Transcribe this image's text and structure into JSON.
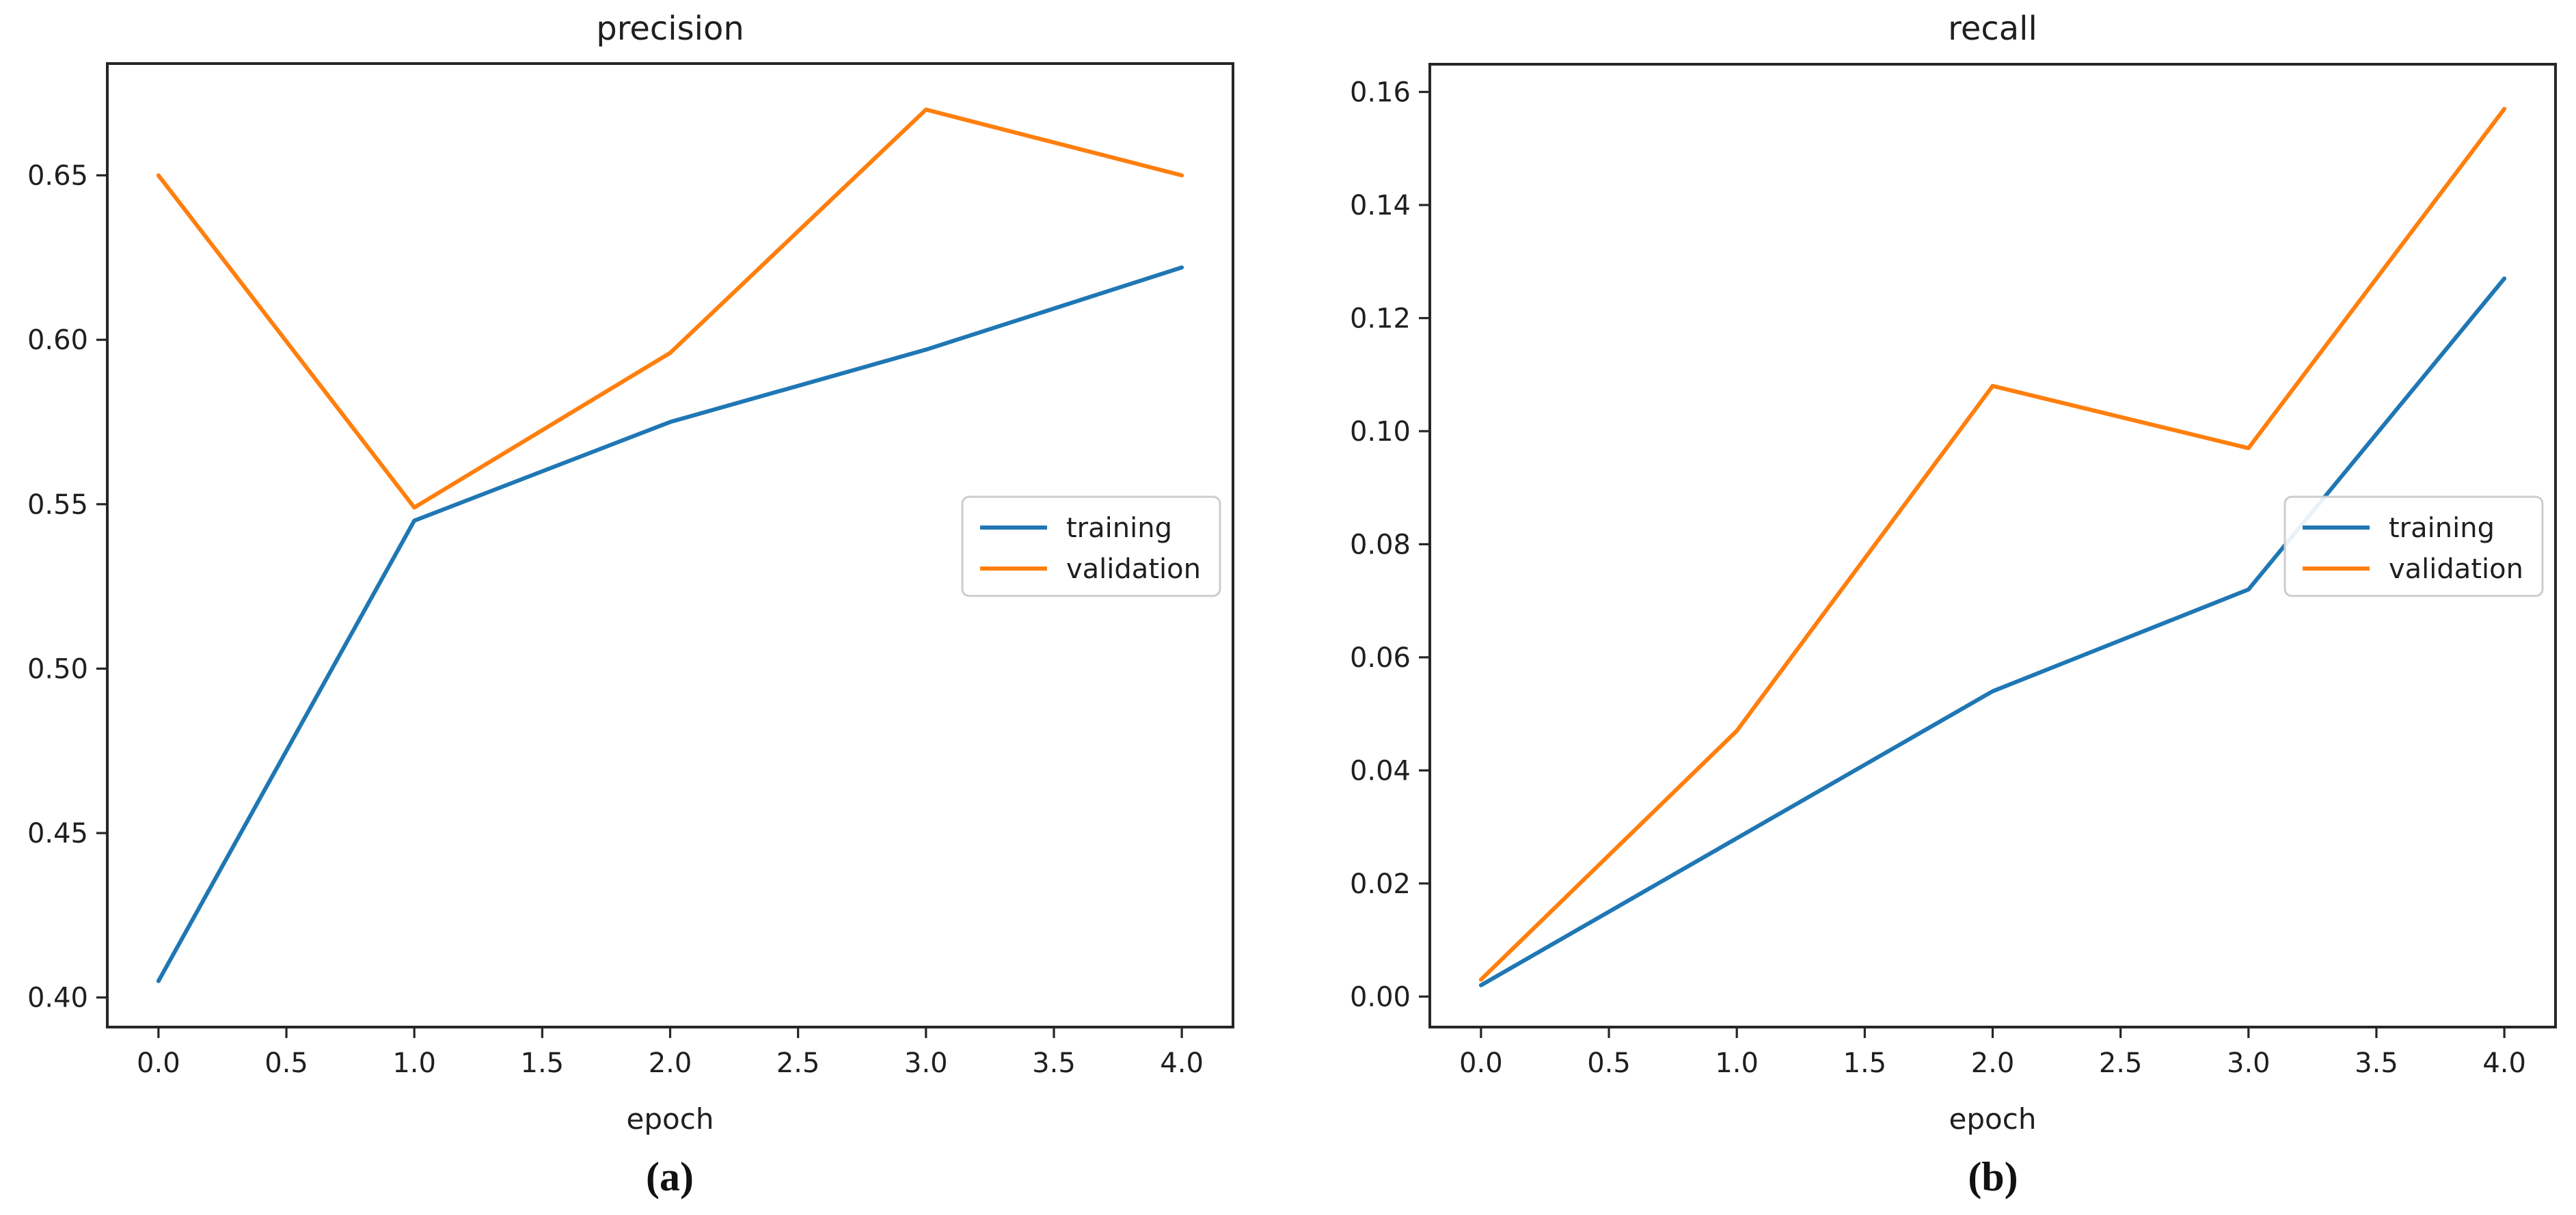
{
  "page": {
    "background": "#ffffff"
  },
  "palette": {
    "training": "#1f77b4",
    "validation": "#ff7f0e",
    "axis": "#262626",
    "text": "#1f1f1f",
    "legend_border": "#cccccc",
    "legend_fill": "#ffffff"
  },
  "chart_data": [
    {
      "id": "precision",
      "type": "line",
      "title": "precision",
      "xlabel": "epoch",
      "ylabel": "",
      "caption": "(a)",
      "grid": false,
      "legend": {
        "position": "center right",
        "entries": [
          "training",
          "validation"
        ]
      },
      "x": [
        0,
        1,
        2,
        3,
        4
      ],
      "series": [
        {
          "name": "training",
          "color_key": "training",
          "values": [
            0.405,
            0.545,
            0.575,
            0.597,
            0.622
          ]
        },
        {
          "name": "validation",
          "color_key": "validation",
          "values": [
            0.65,
            0.549,
            0.596,
            0.67,
            0.65
          ]
        }
      ],
      "xlim": [
        -0.2,
        4.2
      ],
      "ylim": [
        0.391,
        0.684
      ],
      "xticks": {
        "values": [
          0.0,
          0.5,
          1.0,
          1.5,
          2.0,
          2.5,
          3.0,
          3.5,
          4.0
        ],
        "labels": [
          "0.0",
          "0.5",
          "1.0",
          "1.5",
          "2.0",
          "2.5",
          "3.0",
          "3.5",
          "4.0"
        ]
      },
      "yticks": {
        "values": [
          0.4,
          0.45,
          0.5,
          0.55,
          0.6,
          0.65
        ],
        "labels": [
          "0.40",
          "0.45",
          "0.50",
          "0.55",
          "0.60",
          "0.65"
        ]
      }
    },
    {
      "id": "recall",
      "type": "line",
      "title": "recall",
      "xlabel": "epoch",
      "ylabel": "",
      "caption": "(b)",
      "grid": false,
      "legend": {
        "position": "center right",
        "entries": [
          "training",
          "validation"
        ]
      },
      "x": [
        0,
        1,
        2,
        3,
        4
      ],
      "series": [
        {
          "name": "training",
          "color_key": "training",
          "values": [
            0.002,
            0.028,
            0.054,
            0.072,
            0.127
          ]
        },
        {
          "name": "validation",
          "color_key": "validation",
          "values": [
            0.003,
            0.047,
            0.108,
            0.097,
            0.157
          ]
        }
      ],
      "xlim": [
        -0.2,
        4.2
      ],
      "ylim": [
        -0.0054,
        0.1649
      ],
      "xticks": {
        "values": [
          0.0,
          0.5,
          1.0,
          1.5,
          2.0,
          2.5,
          3.0,
          3.5,
          4.0
        ],
        "labels": [
          "0.0",
          "0.5",
          "1.0",
          "1.5",
          "2.0",
          "2.5",
          "3.0",
          "3.5",
          "4.0"
        ]
      },
      "yticks": {
        "values": [
          0.0,
          0.02,
          0.04,
          0.06,
          0.08,
          0.1,
          0.12,
          0.14,
          0.16
        ],
        "labels": [
          "0.00",
          "0.02",
          "0.04",
          "0.06",
          "0.08",
          "0.10",
          "0.12",
          "0.14",
          "0.16"
        ]
      }
    }
  ]
}
